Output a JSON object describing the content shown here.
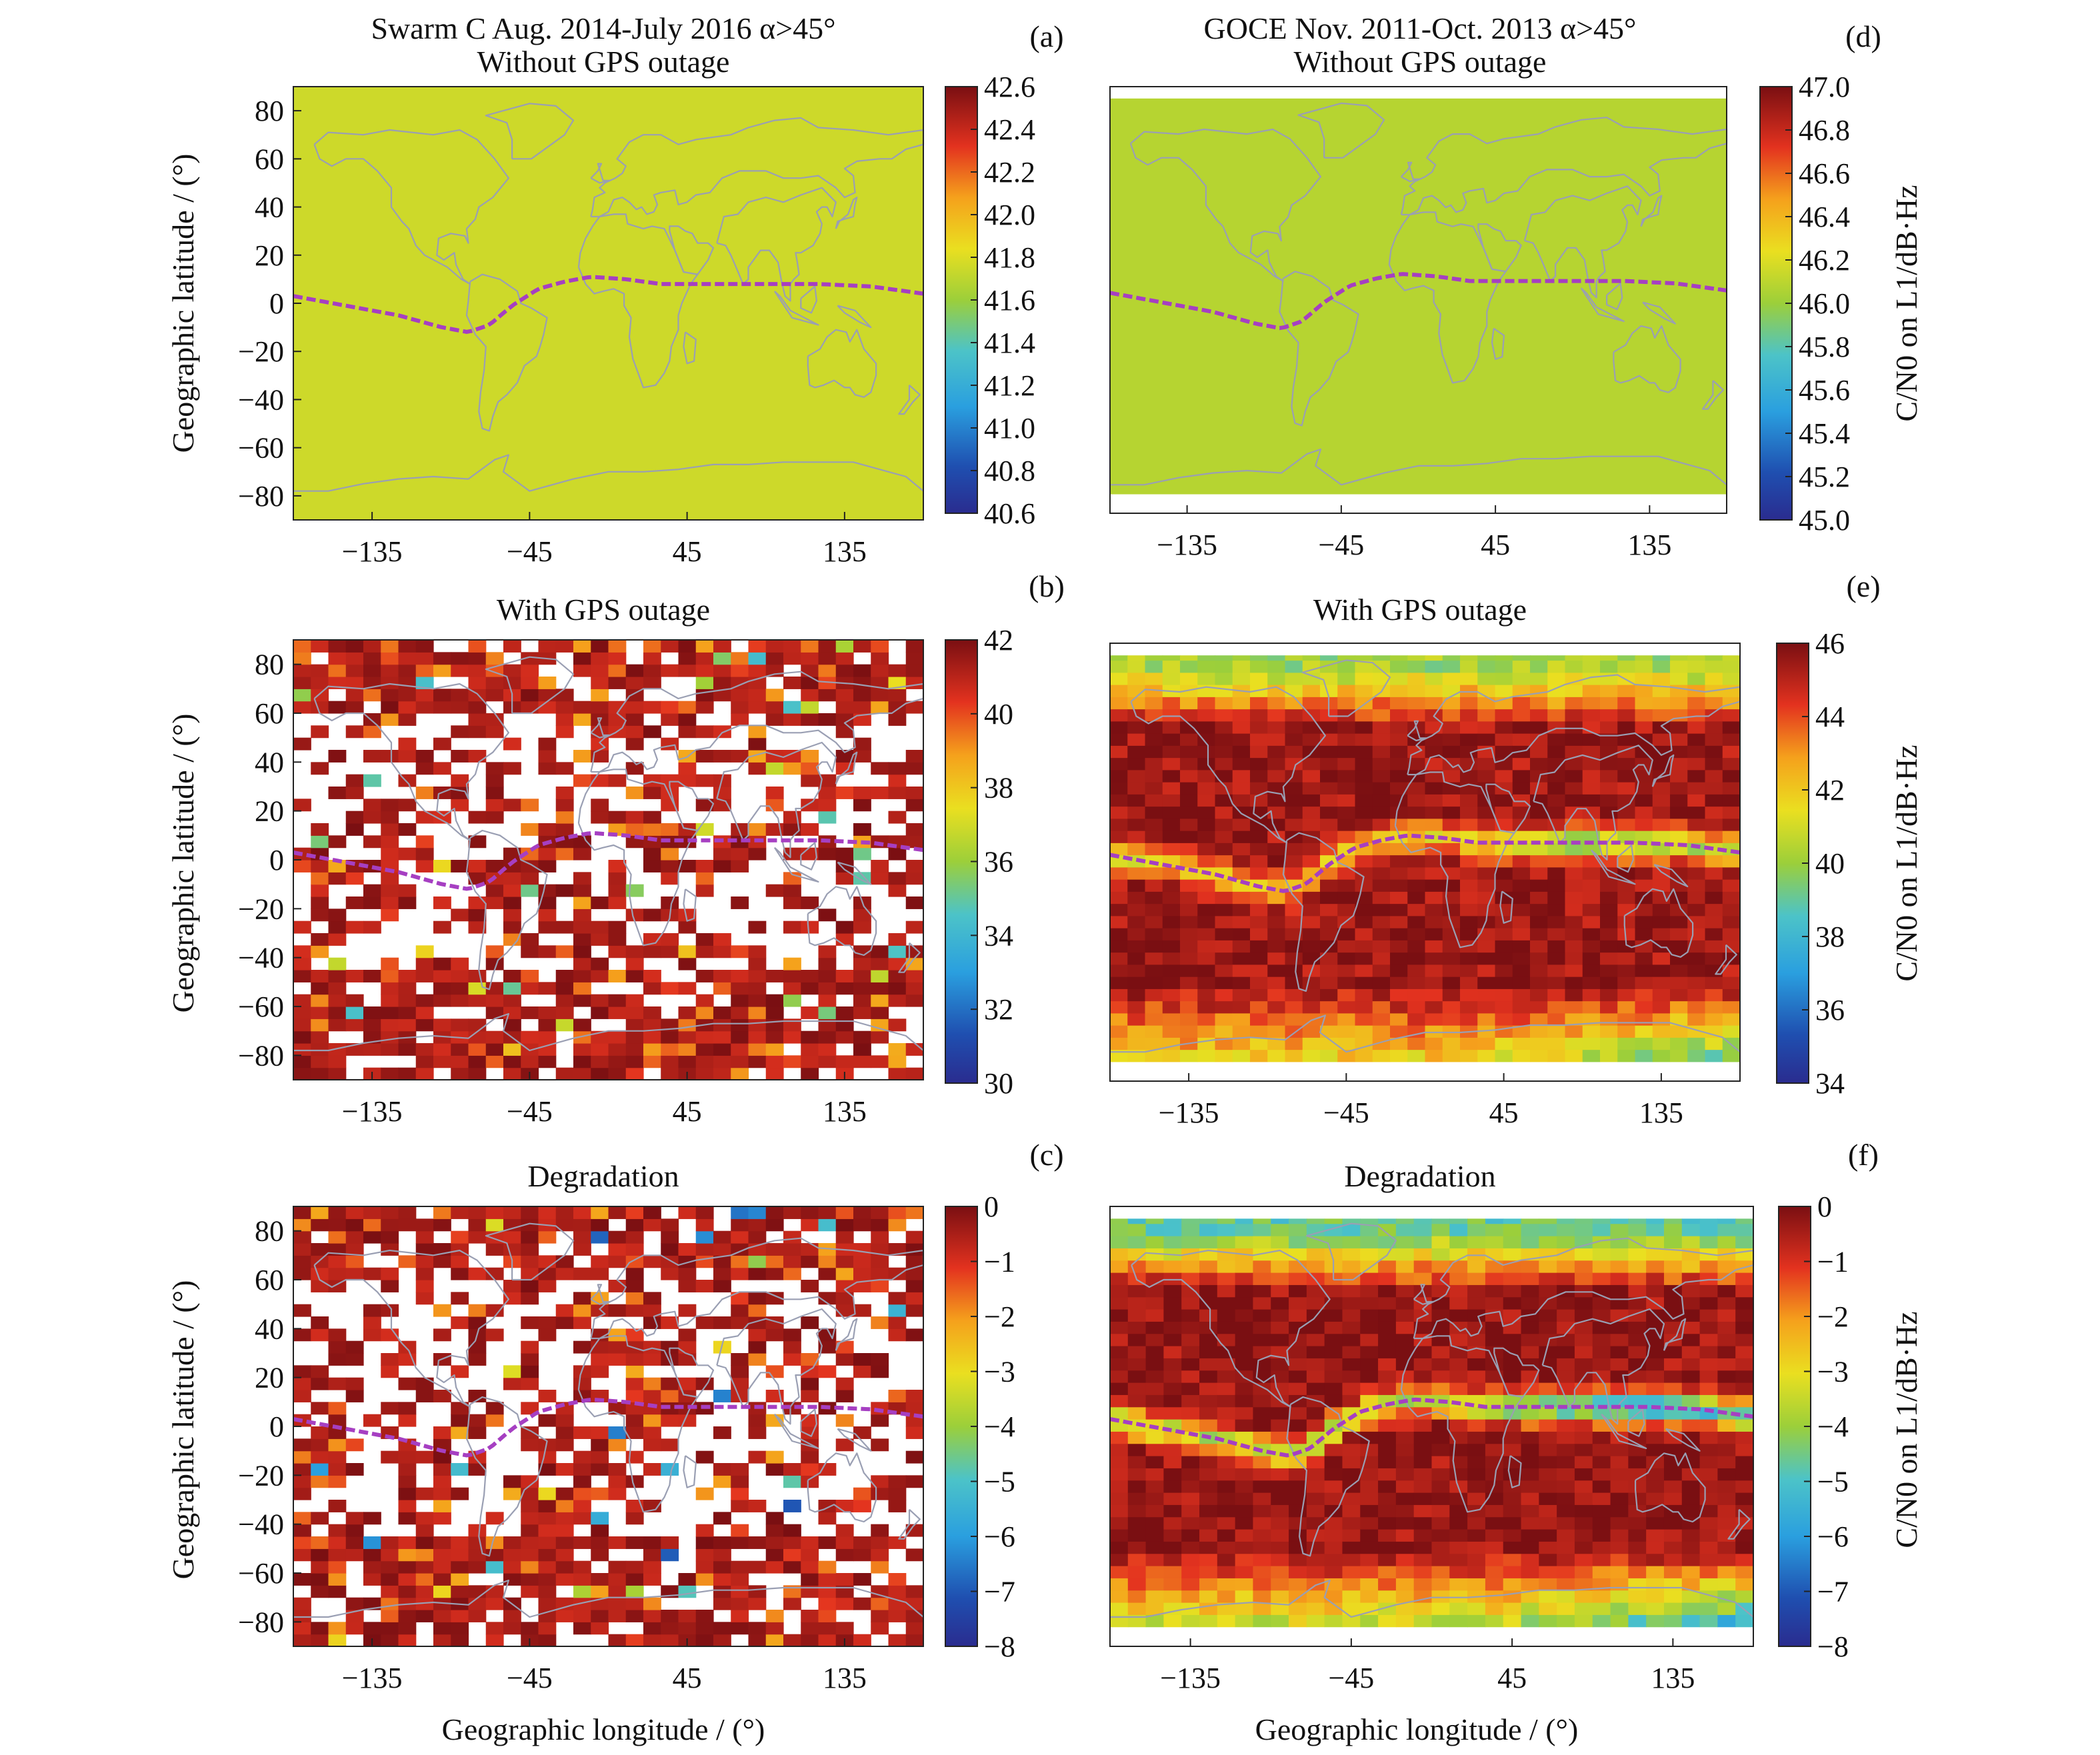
{
  "figure": {
    "ylabel": "Geographic latitude / (°)",
    "xlabel": "Geographic longitude / (°)",
    "colorbar_label": "C/N0 on L1/dB·Hz"
  },
  "chart_data": [
    {
      "id": "a",
      "panel_label": "(a)",
      "satellite": "Swarm C",
      "title": [
        "Swarm C Aug. 2014-July 2016 α>45°",
        "Without GPS outage"
      ],
      "type": "heatmap",
      "pattern": "uniform",
      "x_ticks": [
        -135,
        -45,
        45,
        135
      ],
      "xlim": [
        -180,
        180
      ],
      "y_ticks": [
        80,
        60,
        40,
        20,
        0,
        -20,
        -40,
        -60,
        -80
      ],
      "ylim": [
        -90,
        90
      ],
      "lat_coverage": [
        -90,
        90
      ],
      "colorbar": {
        "min": 40.6,
        "max": 42.6,
        "ticks": [
          "40.6",
          "40.8",
          "41.0",
          "41.2",
          "41.4",
          "41.6",
          "41.8",
          "42.0",
          "42.2",
          "42.4",
          "42.6"
        ]
      },
      "field_value": 41.75
    },
    {
      "id": "b",
      "panel_label": "(b)",
      "satellite": "Swarm C",
      "title": [
        "With GPS outage"
      ],
      "type": "heatmap",
      "pattern": "swarm_outage",
      "x_ticks": [
        -135,
        -45,
        45,
        135
      ],
      "xlim": [
        -180,
        180
      ],
      "y_ticks": [
        80,
        60,
        40,
        20,
        0,
        -20,
        -40,
        -60,
        -80
      ],
      "ylim": [
        -90,
        90
      ],
      "lat_coverage": [
        -90,
        90
      ],
      "colorbar": {
        "min": 30,
        "max": 42,
        "ticks": [
          "30",
          "32",
          "34",
          "36",
          "38",
          "40",
          "42"
        ]
      }
    },
    {
      "id": "c",
      "panel_label": "(c)",
      "satellite": "Swarm C",
      "title": [
        "Degradation"
      ],
      "type": "heatmap",
      "pattern": "swarm_degradation",
      "x_ticks": [
        -135,
        -45,
        45,
        135
      ],
      "xlim": [
        -180,
        180
      ],
      "y_ticks": [
        80,
        60,
        40,
        20,
        0,
        -20,
        -40,
        -60,
        -80
      ],
      "ylim": [
        -90,
        90
      ],
      "lat_coverage": [
        -90,
        90
      ],
      "colorbar": {
        "min": -8,
        "max": 0,
        "ticks": [
          "-8",
          "-7",
          "-6",
          "-5",
          "-4",
          "-3",
          "-2",
          "-1",
          "0"
        ]
      }
    },
    {
      "id": "d",
      "panel_label": "(d)",
      "satellite": "GOCE",
      "title": [
        "GOCE Nov. 2011-Oct. 2013 α>45°",
        "Without GPS outage"
      ],
      "type": "heatmap",
      "pattern": "uniform",
      "x_ticks": [
        -135,
        -45,
        45,
        135
      ],
      "xlim": [
        -180,
        180
      ],
      "y_ticks": [],
      "ylim": [
        -90,
        90
      ],
      "lat_coverage": [
        -82,
        85
      ],
      "colorbar": {
        "min": 45.0,
        "max": 47.0,
        "ticks": [
          "45.0",
          "45.2",
          "45.4",
          "45.6",
          "45.8",
          "46.0",
          "46.2",
          "46.4",
          "46.6",
          "46.8",
          "47.0"
        ]
      },
      "field_value": 46.08
    },
    {
      "id": "e",
      "panel_label": "(e)",
      "satellite": "GOCE",
      "title": [
        "With GPS outage"
      ],
      "type": "heatmap",
      "pattern": "goce_outage",
      "x_ticks": [
        -135,
        -45,
        45,
        135
      ],
      "xlim": [
        -180,
        180
      ],
      "y_ticks": [],
      "ylim": [
        -90,
        90
      ],
      "lat_coverage": [
        -82,
        85
      ],
      "colorbar": {
        "min": 34,
        "max": 46,
        "ticks": [
          "34",
          "36",
          "38",
          "40",
          "42",
          "44",
          "46"
        ]
      }
    },
    {
      "id": "f",
      "panel_label": "(f)",
      "satellite": "GOCE",
      "title": [
        "Degradation"
      ],
      "type": "heatmap",
      "pattern": "goce_degradation",
      "x_ticks": [
        -135,
        -45,
        45,
        135
      ],
      "xlim": [
        -180,
        180
      ],
      "y_ticks": [],
      "ylim": [
        -90,
        90
      ],
      "lat_coverage": [
        -82,
        85
      ],
      "colorbar": {
        "min": -8,
        "max": 0,
        "ticks": [
          "-8",
          "-7",
          "-6",
          "-5",
          "-4",
          "-3",
          "-2",
          "-1",
          "0"
        ]
      }
    }
  ],
  "magnetic_equator": {
    "color": "#a63fc2",
    "points": [
      [
        -180,
        3
      ],
      [
        -150,
        -1
      ],
      [
        -120,
        -5
      ],
      [
        -95,
        -10
      ],
      [
        -80,
        -12
      ],
      [
        -68,
        -9
      ],
      [
        -55,
        -1
      ],
      [
        -40,
        6
      ],
      [
        -25,
        9
      ],
      [
        -10,
        11
      ],
      [
        10,
        10
      ],
      [
        30,
        8
      ],
      [
        60,
        8
      ],
      [
        90,
        8
      ],
      [
        120,
        8
      ],
      [
        150,
        7
      ],
      [
        180,
        4
      ]
    ]
  },
  "colors": {
    "colormap": "jet",
    "coastline": "#9a9fb3",
    "missing": "#ffffff"
  }
}
